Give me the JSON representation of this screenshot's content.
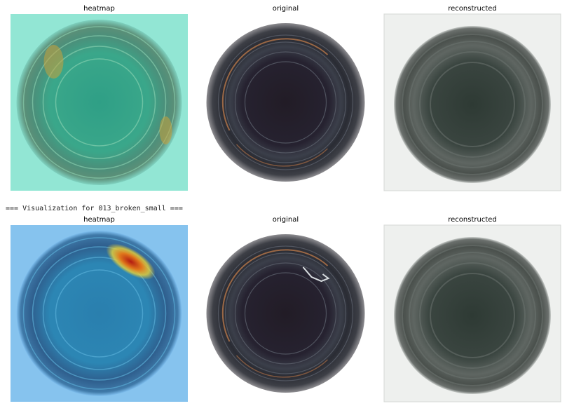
{
  "sections": [
    {
      "titles": [
        "heatmap",
        "original",
        "reconstructed"
      ],
      "variant": "green"
    },
    {
      "header": "=== Visualization for 013_broken_small ===",
      "titles": [
        "heatmap",
        "original",
        "reconstructed"
      ],
      "variant": "blue"
    }
  ]
}
